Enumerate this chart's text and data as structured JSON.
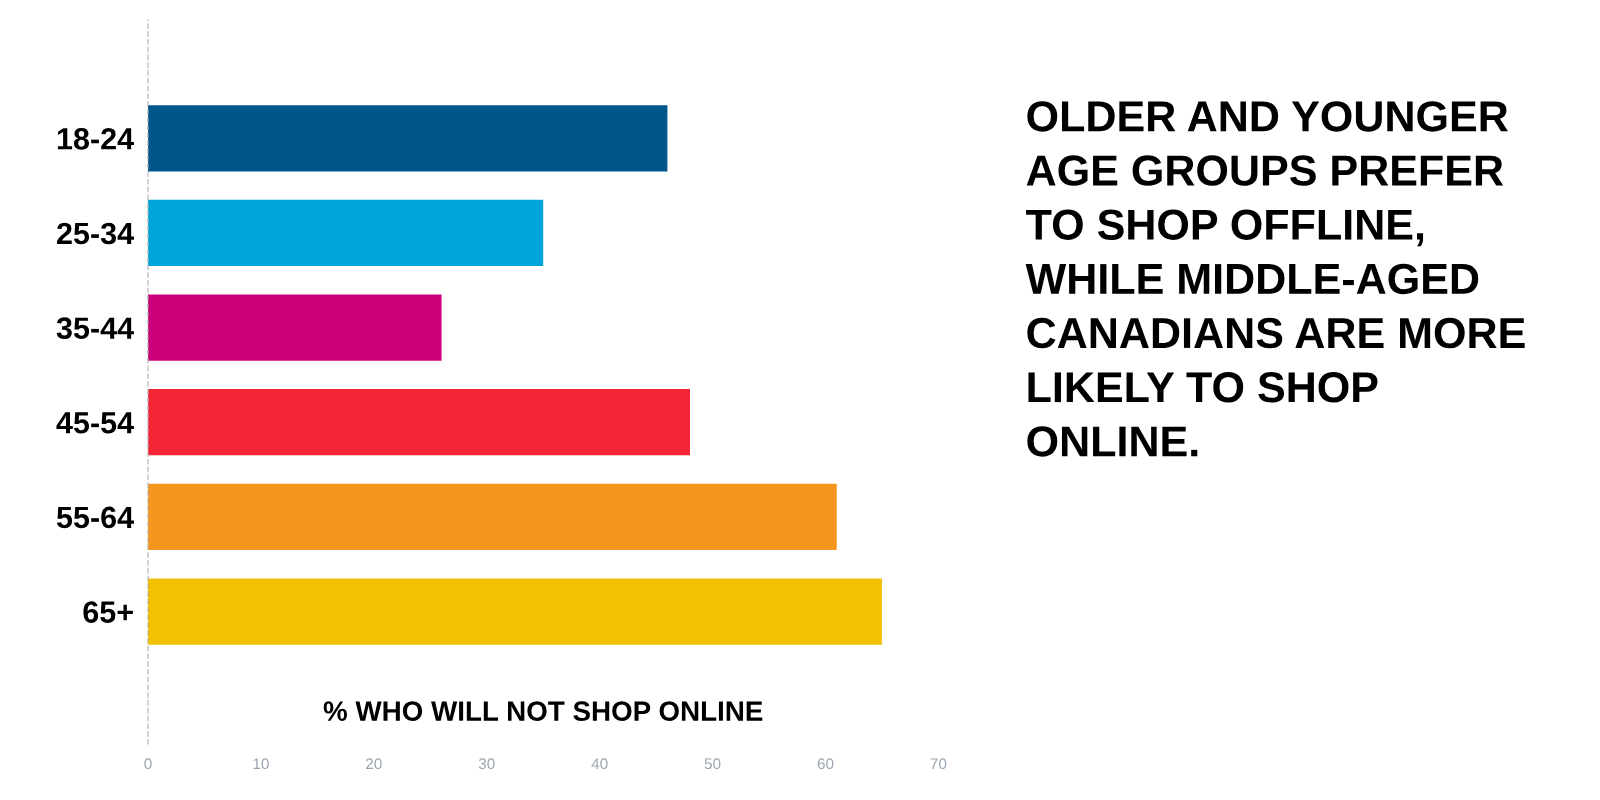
{
  "chart_data": {
    "type": "bar",
    "orientation": "horizontal",
    "categories": [
      "18-24",
      "25-34",
      "35-44",
      "45-54",
      "55-64",
      "65+"
    ],
    "values": [
      46,
      35,
      26,
      48,
      61,
      65
    ],
    "colors": [
      "#00568a",
      "#00a5db",
      "#cc007a",
      "#f42535",
      "#f7961f",
      "#f2c200"
    ],
    "xlabel": "% WHO WILL NOT SHOP ONLINE",
    "xlim": [
      0,
      70
    ],
    "xticks": [
      0,
      10,
      20,
      30,
      40,
      50,
      60,
      70
    ],
    "grid": false,
    "legend": false,
    "annotations": [
      "OLDER AND YOUNGER\nAGE GROUPS PREFER\nTO SHOP OFFLINE,\nWHILE MIDDLE-AGED\nCANADIANS ARE MORE\nLIKELY TO SHOP\nONLINE."
    ]
  }
}
